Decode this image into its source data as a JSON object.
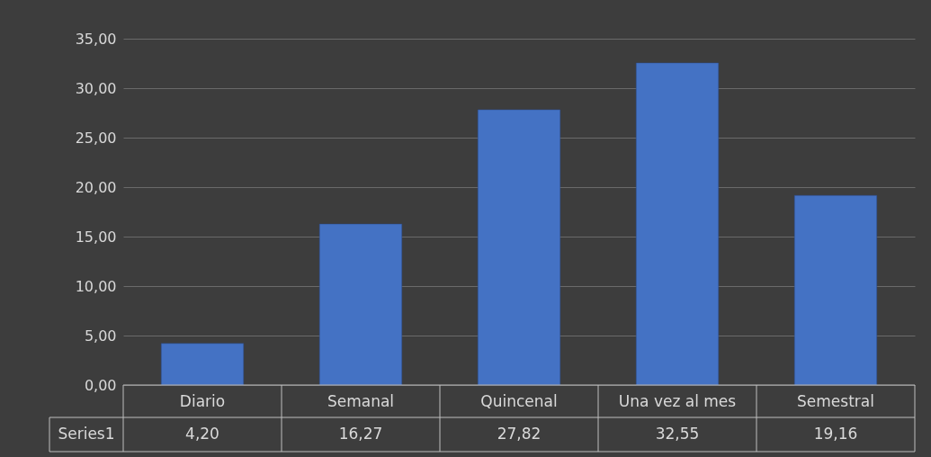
{
  "chart_data": {
    "type": "bar",
    "categories": [
      "Diario",
      "Semanal",
      "Quincenal",
      "Una vez al mes",
      "Semestral"
    ],
    "series": [
      {
        "name": "Series1",
        "color": "#4472c4",
        "values": [
          4.2,
          16.27,
          27.82,
          32.55,
          19.16
        ],
        "value_labels": [
          "4,20",
          "16,27",
          "27,82",
          "32,55",
          "19,16"
        ]
      }
    ],
    "ylim": [
      0,
      35
    ],
    "yticks": [
      {
        "value": 0,
        "label": "0,00"
      },
      {
        "value": 5,
        "label": "5,00"
      },
      {
        "value": 10,
        "label": "10,00"
      },
      {
        "value": 15,
        "label": "15,00"
      },
      {
        "value": 20,
        "label": "20,00"
      },
      {
        "value": 25,
        "label": "25,00"
      },
      {
        "value": 30,
        "label": "30,00"
      },
      {
        "value": 35,
        "label": "35,00"
      }
    ],
    "grid": "y"
  }
}
